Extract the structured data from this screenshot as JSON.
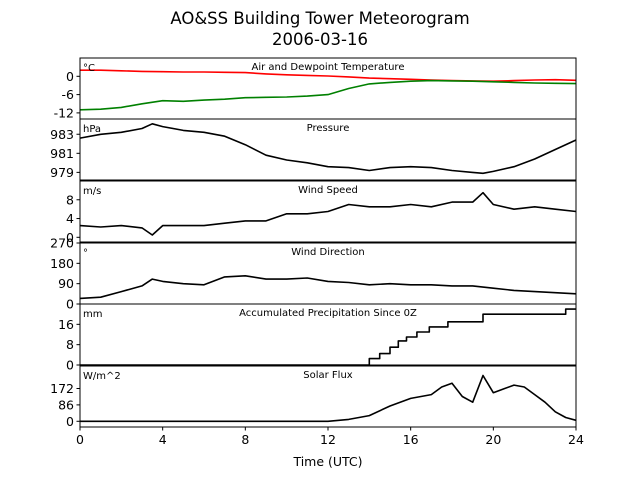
{
  "title": "AO&SS Building Tower Meteorogram",
  "date": "2006-03-16",
  "chart_data": [
    {
      "type": "line",
      "title": "Air and Dewpoint Temperature",
      "unit": "°C",
      "ylim": [
        -14,
        6
      ],
      "yticks": [
        0,
        -6,
        -12
      ],
      "series": [
        {
          "color": "#ff0000",
          "x": [
            0,
            1,
            2,
            3,
            4,
            5,
            6,
            7,
            8,
            9,
            10,
            11,
            12,
            13,
            14,
            15,
            16,
            17,
            18,
            19,
            20,
            21,
            22,
            23,
            24
          ],
          "values": [
            2,
            2,
            1.8,
            1.6,
            1.5,
            1.4,
            1.4,
            1.3,
            1.2,
            0.8,
            0.5,
            0.3,
            0.1,
            -0.2,
            -0.6,
            -0.8,
            -1,
            -1.2,
            -1.4,
            -1.5,
            -1.6,
            -1.4,
            -1.2,
            -1.1,
            -1.3
          ]
        },
        {
          "color": "#008000",
          "x": [
            0,
            1,
            2,
            3,
            4,
            5,
            6,
            7,
            8,
            9,
            10,
            11,
            12,
            13,
            14,
            15,
            16,
            17,
            18,
            19,
            20,
            21,
            22,
            23,
            24
          ],
          "values": [
            -11,
            -10.8,
            -10.2,
            -9,
            -8,
            -8.2,
            -7.8,
            -7.5,
            -7,
            -6.9,
            -6.8,
            -6.5,
            -6,
            -4,
            -2.5,
            -2,
            -1.6,
            -1.4,
            -1.5,
            -1.6,
            -1.8,
            -2,
            -2.2,
            -2.3,
            -2.4
          ]
        }
      ]
    },
    {
      "type": "line",
      "title": "Pressure",
      "unit": "hPa",
      "ylim": [
        978.2,
        984.6
      ],
      "yticks": [
        983,
        981,
        979
      ],
      "series": [
        {
          "color": "#000000",
          "x": [
            0,
            1,
            2,
            3,
            3.5,
            4,
            5,
            6,
            7,
            8,
            9,
            10,
            11,
            12,
            13,
            14,
            15,
            16,
            17,
            18,
            19,
            19.5,
            20,
            21,
            22,
            23,
            24
          ],
          "values": [
            982.6,
            983,
            983.2,
            983.6,
            984.1,
            983.8,
            983.4,
            983.2,
            982.8,
            981.9,
            980.8,
            980.3,
            980,
            979.6,
            979.5,
            979.2,
            979.5,
            979.6,
            979.5,
            979.2,
            979,
            978.9,
            979.1,
            979.6,
            980.4,
            981.4,
            982.4
          ]
        }
      ]
    },
    {
      "type": "line",
      "title": "Wind Speed",
      "unit": "m/s",
      "ylim": [
        -1,
        12
      ],
      "yticks": [
        0,
        4,
        8
      ],
      "series": [
        {
          "color": "#000000",
          "x": [
            0,
            1,
            2,
            3,
            3.5,
            4,
            5,
            6,
            7,
            8,
            9,
            10,
            11,
            12,
            13,
            14,
            15,
            16,
            17,
            18,
            19,
            19.5,
            20,
            21,
            22,
            23,
            24
          ],
          "values": [
            2.5,
            2.2,
            2.5,
            2,
            0.5,
            2.5,
            2.5,
            2.5,
            3,
            3.5,
            3.5,
            5,
            5,
            5.5,
            7,
            6.5,
            6.5,
            7,
            6.5,
            7.5,
            7.5,
            9.5,
            7,
            6,
            6.5,
            6,
            5.5
          ]
        }
      ]
    },
    {
      "type": "line",
      "title": "Wind Direction",
      "unit": "°",
      "ylim": [
        0,
        270
      ],
      "yticks": [
        270,
        180,
        90,
        0
      ],
      "series": [
        {
          "color": "#000000",
          "x": [
            0,
            1,
            2,
            3,
            3.5,
            4,
            5,
            6,
            7,
            8,
            9,
            10,
            11,
            12,
            13,
            14,
            15,
            16,
            17,
            18,
            19,
            20,
            21,
            22,
            23,
            24
          ],
          "values": [
            25,
            30,
            55,
            80,
            110,
            100,
            90,
            85,
            120,
            125,
            110,
            110,
            115,
            100,
            95,
            85,
            90,
            85,
            85,
            80,
            80,
            70,
            60,
            55,
            50,
            45
          ]
        }
      ]
    },
    {
      "type": "line",
      "title": "Accumulated Precipitation Since 0Z",
      "unit": "mm",
      "ylim": [
        0,
        24
      ],
      "yticks": [
        0,
        8,
        16
      ],
      "series": [
        {
          "color": "#000000",
          "x": [
            0,
            14,
            14,
            14.5,
            14.5,
            15,
            15,
            15.4,
            15.4,
            15.8,
            15.8,
            16.3,
            16.3,
            16.9,
            16.9,
            17.8,
            17.8,
            19.5,
            19.5,
            23.5,
            23.5,
            24
          ],
          "values": [
            0,
            0,
            2.5,
            2.5,
            4.5,
            4.5,
            7,
            7,
            9.5,
            9.5,
            11,
            11,
            13,
            13,
            15,
            15,
            17,
            17,
            20,
            20,
            22,
            22
          ]
        }
      ]
    },
    {
      "type": "line",
      "title": "Solar Flux",
      "unit": "W/m^2",
      "ylim": [
        -30,
        290
      ],
      "yticks": [
        172,
        86,
        0
      ],
      "series": [
        {
          "color": "#000000",
          "x": [
            0,
            6,
            12,
            13,
            14,
            15,
            16,
            17,
            17.5,
            18,
            18.5,
            19,
            19.5,
            20,
            20.5,
            21,
            21.5,
            22,
            22.5,
            23,
            23.5,
            24
          ],
          "values": [
            0,
            0,
            0,
            10,
            30,
            80,
            120,
            140,
            180,
            200,
            130,
            100,
            240,
            150,
            170,
            190,
            180,
            140,
            100,
            50,
            20,
            5
          ]
        }
      ]
    }
  ],
  "x_axis": {
    "label": "Time (UTC)",
    "xlim": [
      0,
      24
    ],
    "ticks": [
      0,
      4,
      8,
      12,
      16,
      20,
      24
    ]
  }
}
